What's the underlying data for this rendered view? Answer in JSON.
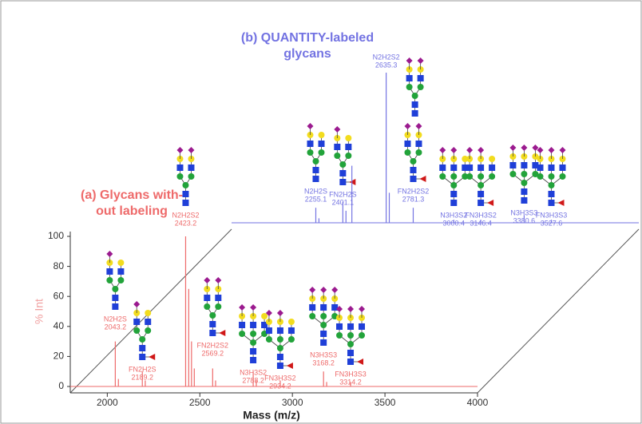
{
  "chart_data": {
    "type": "offset-spectra",
    "xlabel": "Mass (m/z)",
    "ylabel": "% Int",
    "xlim": [
      1800,
      4000
    ],
    "xticks": [
      2000,
      2500,
      3000,
      3500,
      4000
    ],
    "ylim": [
      0,
      100
    ],
    "yticks": [
      0,
      20,
      40,
      60,
      80,
      100
    ],
    "series": [
      {
        "label": [
          "(a) Glycans with-",
          "out labeling"
        ],
        "color": "#ee6a6a",
        "x": [
          2043.2,
          2060,
          2189.2,
          2205,
          2423.2,
          2440,
          2455,
          2470,
          2569.2,
          2585,
          2788.2,
          2805,
          2934.2,
          3168.2,
          3185,
          3314.2
        ],
        "values": [
          30,
          5,
          10,
          4,
          100,
          65,
          30,
          12,
          12,
          4,
          10,
          4,
          4,
          10,
          3,
          3
        ],
        "peak_names": [
          "N2H2S",
          null,
          "FN2H2S",
          null,
          "N2H2S2",
          null,
          null,
          null,
          "FN2H2S2",
          null,
          "N3H3S2",
          null,
          "FN3H3S2",
          "N3H3S3",
          null,
          "FN3H3S3"
        ]
      },
      {
        "label": [
          "(b) QUANTITY-labeled",
          "glycans"
        ],
        "color": "#7373e2",
        "x": [
          2255.1,
          2272,
          2401.1,
          2418,
          2450,
          2635.3,
          2652,
          2781.3,
          3000.4,
          3146.4,
          3380.6,
          3527.6
        ],
        "values": [
          10,
          3,
          14,
          8,
          38,
          100,
          20,
          10,
          2,
          2,
          5,
          2
        ],
        "peak_names": [
          "N2H2S",
          null,
          "FN2H2S",
          null,
          null,
          "N2H2S2",
          null,
          "FN2H2S2",
          "N3H3S2",
          "FN3H3S2",
          "N3H3S3",
          "FN3H3S3"
        ]
      }
    ]
  }
}
